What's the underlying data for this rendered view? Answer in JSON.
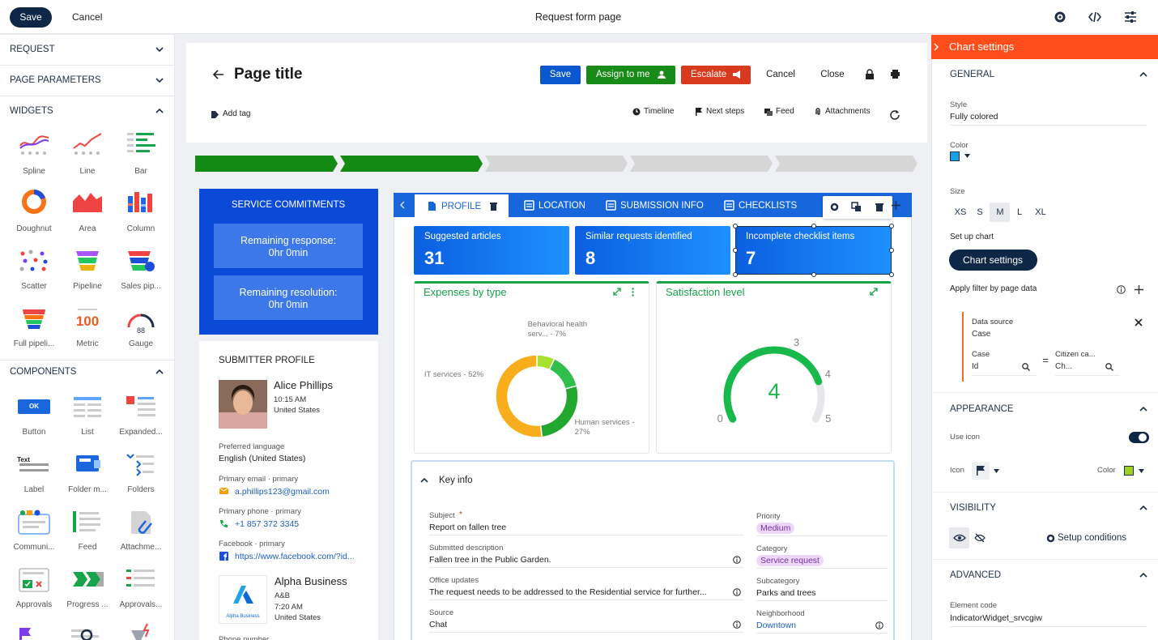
{
  "topbar": {
    "save": "Save",
    "cancel": "Cancel",
    "title": "Request form page"
  },
  "sidebar": {
    "sections": [
      "REQUEST",
      "PAGE PARAMETERS"
    ],
    "widgets": {
      "title": "WIDGETS",
      "items": [
        "Spline",
        "Line",
        "Bar",
        "Doughnut",
        "Area",
        "Column",
        "Scatter",
        "Pipeline",
        "Sales pip...",
        "Full pipeli...",
        "Metric",
        "Gauge"
      ]
    },
    "components": {
      "title": "COMPONENTS",
      "items": [
        "Button",
        "List",
        "Expanded...",
        "Label",
        "Folder m...",
        "Folders",
        "Communi...",
        "Feed",
        "Attachme...",
        "Approvals",
        "Progress ...",
        "Approvals..."
      ]
    },
    "icon_texts": {
      "ok": "OK",
      "text": "Text",
      "metric": "100",
      "gauge": "88"
    }
  },
  "header": {
    "title": "Page title",
    "buttons": [
      "Save",
      "Assign to me",
      "Escalate",
      "Cancel",
      "Close"
    ],
    "add_tag": "Add tag",
    "links": [
      "Timeline",
      "Next steps",
      "Feed",
      "Attachments"
    ]
  },
  "service": {
    "title": "SERVICE COMMITMENTS",
    "items": [
      {
        "label": "Remaining response:",
        "value": "0hr 0min"
      },
      {
        "label": "Remaining resolution:",
        "value": "0hr 0min"
      }
    ]
  },
  "submitter": {
    "title": "SUBMITTER PROFILE",
    "person": {
      "name": "Alice Phillips",
      "time": "10:15 AM",
      "country": "United States"
    },
    "fields": [
      {
        "label": "Preferred language",
        "value": "English (United States)"
      },
      {
        "label": "Primary email · primary",
        "value": "a.phillips123@gmail.com"
      },
      {
        "label": "Primary phone · primary",
        "value": "+1 857 372 3345"
      },
      {
        "label": "Facebook · primary",
        "value": "https://www.facebook.com/?id..."
      }
    ],
    "company": {
      "name": "Alpha Business",
      "short": "A&B",
      "time": "7:20 AM",
      "country": "United States",
      "logo_text": "Alpha Business"
    },
    "next_label": "Phone number"
  },
  "tabs": [
    "PROFILE",
    "LOCATION",
    "SUBMISSION INFO",
    "CHECKLISTS"
  ],
  "metrics": [
    {
      "label": "Suggested articles",
      "value": 31
    },
    {
      "label": "Similar requests identified",
      "value": 8
    },
    {
      "label": "Incomplete checklist items",
      "value": 7
    }
  ],
  "chart_data": [
    {
      "type": "doughnut",
      "title": "Expenses by type",
      "categories": [
        "Behavioral health serv... - 7%",
        null,
        "Human services - 27%",
        "IT services - 52%"
      ],
      "values": [
        7,
        14,
        27,
        52
      ],
      "colors": [
        "#a6e22e",
        "#2fbf4a",
        "#22a82e",
        "#f8ad1d"
      ]
    },
    {
      "type": "gauge",
      "title": "Satisfaction level",
      "value": 4,
      "ylim": [
        0,
        5
      ],
      "yticks": [
        0,
        3,
        4,
        5
      ],
      "color": "#19b84a"
    }
  ],
  "key_info": {
    "title": "Key info",
    "required_mark": "*",
    "left": [
      {
        "label": "Subject",
        "value": "Report on fallen tree"
      },
      {
        "label": "Submitted description",
        "value": "Fallen tree in the Public Garden."
      },
      {
        "label": "Office updates",
        "value": "The request needs to be addressed to the Residential service for further..."
      },
      {
        "label": "Source",
        "value": "Chat"
      }
    ],
    "right": [
      {
        "label": "Priority",
        "value": "Medium"
      },
      {
        "label": "Category",
        "value": "Service request"
      },
      {
        "label": "Subcategory",
        "value": "Parks and trees"
      },
      {
        "label": "Neighborhood",
        "value": "Downtown"
      }
    ]
  },
  "settings": {
    "title": "Chart settings",
    "general": "GENERAL",
    "style_label": "Style",
    "style_value": "Fully colored",
    "color_label": "Color",
    "size_label": "Size",
    "sizes": [
      "XS",
      "S",
      "M",
      "L",
      "XL"
    ],
    "setup_label": "Set up chart",
    "setup_button": "Chart settings",
    "filter_label": "Apply filter by page data",
    "filter": {
      "source_label": "Data source",
      "source_value": "Case",
      "left_label": "Case",
      "left_value": "Id",
      "operator": "=",
      "right_label": "Citizen ca...",
      "right_value": "Ch..."
    },
    "appearance": "APPEARANCE",
    "use_icon": "Use icon",
    "icon_label": "Icon",
    "icon_color_label": "Color",
    "visibility": "VISIBILITY",
    "setup_conditions": "Setup conditions",
    "advanced": "ADVANCED",
    "element_code_label": "Element code",
    "element_code_value": "IndicatorWidget_srvcgiw"
  }
}
